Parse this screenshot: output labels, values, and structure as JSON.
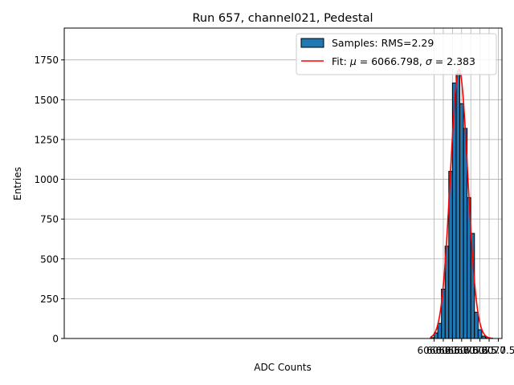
{
  "chart_data": {
    "type": "bar",
    "title": "Run 657, channel021, Pedestal",
    "xlabel": "ADC Counts",
    "ylabel": "Entries",
    "xlim": [
      5959.1,
      6078.5
    ],
    "ylim": [
      0,
      1950
    ],
    "xticks": [
      "6060.0",
      "6062.5",
      "6065.0",
      "6067.5",
      "6070.0",
      "6072.5",
      "6075.0",
      "6077.5"
    ],
    "yticks": [
      "0",
      "250",
      "500",
      "750",
      "1000",
      "1250",
      "1500",
      "1750"
    ],
    "xtick_values": [
      6060.0,
      6062.5,
      6065.0,
      6067.5,
      6070.0,
      6072.5,
      6075.0,
      6077.5
    ],
    "ytick_values": [
      0,
      250,
      500,
      750,
      1000,
      1250,
      1500,
      1750
    ],
    "grid": true,
    "legend_position": "top-right",
    "bins": [
      {
        "x0": 6059.0,
        "x1": 6060.0,
        "count": 5
      },
      {
        "x0": 6060.0,
        "x1": 6061.0,
        "count": 35
      },
      {
        "x0": 6061.0,
        "x1": 6062.0,
        "count": 95
      },
      {
        "x0": 6062.0,
        "x1": 6063.0,
        "count": 310
      },
      {
        "x0": 6063.0,
        "x1": 6064.0,
        "count": 580
      },
      {
        "x0": 6064.0,
        "x1": 6065.0,
        "count": 1050
      },
      {
        "x0": 6065.0,
        "x1": 6066.0,
        "count": 1605
      },
      {
        "x0": 6066.0,
        "x1": 6067.0,
        "count": 1665
      },
      {
        "x0": 6067.0,
        "x1": 6068.0,
        "count": 1475
      },
      {
        "x0": 6068.0,
        "x1": 6069.0,
        "count": 1320
      },
      {
        "x0": 6069.0,
        "x1": 6070.0,
        "count": 885
      },
      {
        "x0": 6070.0,
        "x1": 6071.0,
        "count": 660
      },
      {
        "x0": 6071.0,
        "x1": 6072.0,
        "count": 165
      },
      {
        "x0": 6072.0,
        "x1": 6073.0,
        "count": 55
      },
      {
        "x0": 6073.0,
        "x1": 6074.0,
        "count": 15
      },
      {
        "x0": 6074.0,
        "x1": 6075.0,
        "count": 5
      },
      {
        "x0": 6075.0,
        "x1": 6076.0,
        "count": 0
      },
      {
        "x0": 6076.0,
        "x1": 6077.0,
        "count": 0
      },
      {
        "x0": 6077.0,
        "x1": 6078.0,
        "count": 0
      }
    ],
    "fit": {
      "mu": 6066.798,
      "sigma": 2.383,
      "amplitude": 1690,
      "x_range": [
        6059.0,
        6076.0
      ]
    },
    "series": [
      {
        "name": "Samples: RMS=2.29",
        "type": "histogram",
        "color": "#1f77b4"
      },
      {
        "name_prefix": "Fit: ",
        "mu_label": "μ",
        "mu_text": " = 6066.798, ",
        "sigma_label": "σ",
        "sigma_text": " = 2.383",
        "type": "line",
        "color": "#ff0000"
      }
    ]
  }
}
